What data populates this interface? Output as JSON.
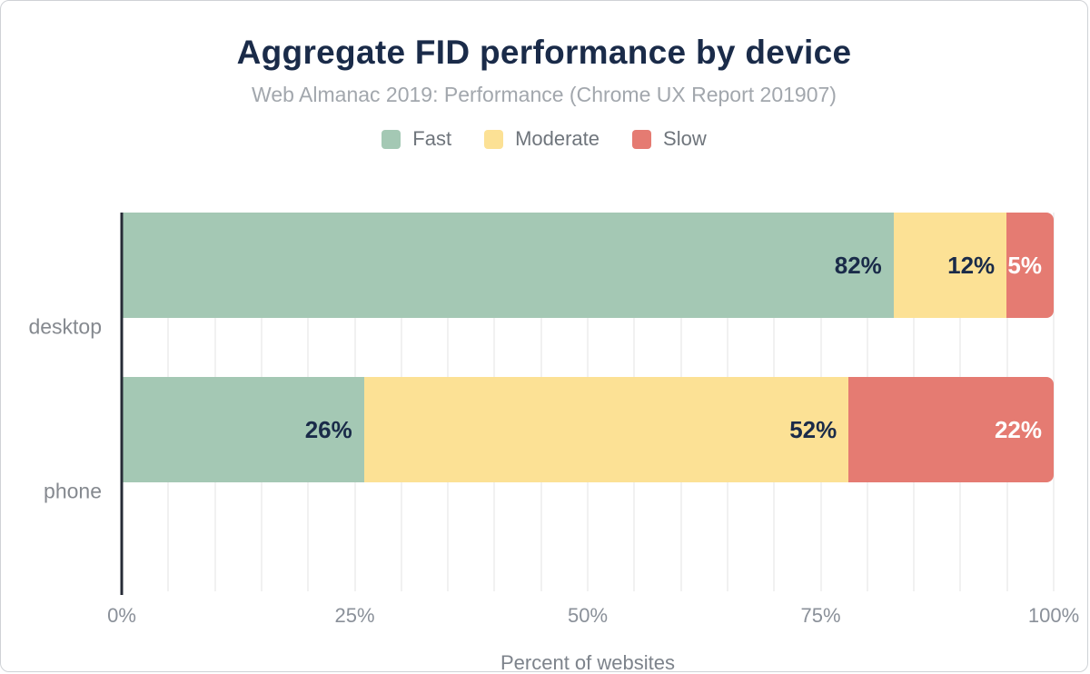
{
  "title": "Aggregate FID performance by device",
  "subtitle": "Web Almanac 2019: Performance (Chrome UX Report 201907)",
  "colors": {
    "title_text": "#1a2b49",
    "subtitle_text": "#a2a7ad",
    "axis_line": "#262b36",
    "gridline": "#f1f1f1",
    "fast": "#a4c8b4",
    "moderate": "#fce195",
    "slow": "#e57b72",
    "label_on_light": "#1a2b49",
    "label_on_slow": "#ffffff"
  },
  "chart_data": {
    "type": "bar",
    "orientation": "horizontal",
    "stacked": true,
    "title": "Aggregate FID performance by device",
    "subtitle": "Web Almanac 2019: Performance (Chrome UX Report 201907)",
    "categories": [
      "desktop",
      "phone"
    ],
    "series": [
      {
        "name": "Fast",
        "color": "#a4c8b4",
        "label_color": "#1a2b49",
        "values": [
          82,
          26
        ]
      },
      {
        "name": "Moderate",
        "color": "#fce195",
        "label_color": "#1a2b49",
        "values": [
          12,
          52
        ]
      },
      {
        "name": "Slow",
        "color": "#e57b72",
        "label_color": "#ffffff",
        "values": [
          5,
          22
        ]
      }
    ],
    "value_labels": [
      [
        "82%",
        "12%",
        "5%"
      ],
      [
        "26%",
        "52%",
        "22%"
      ]
    ],
    "xlabel": "Percent of websites",
    "ylabel": "",
    "xlim": [
      0,
      100
    ],
    "x_ticks": [
      {
        "label": "0%",
        "value": 0
      },
      {
        "label": "25%",
        "value": 25
      },
      {
        "label": "50%",
        "value": 50
      },
      {
        "label": "75%",
        "value": 75
      },
      {
        "label": "100%",
        "value": 100
      }
    ],
    "grid": "vertical",
    "grid_step_pct": 5,
    "legend_position": "top"
  }
}
